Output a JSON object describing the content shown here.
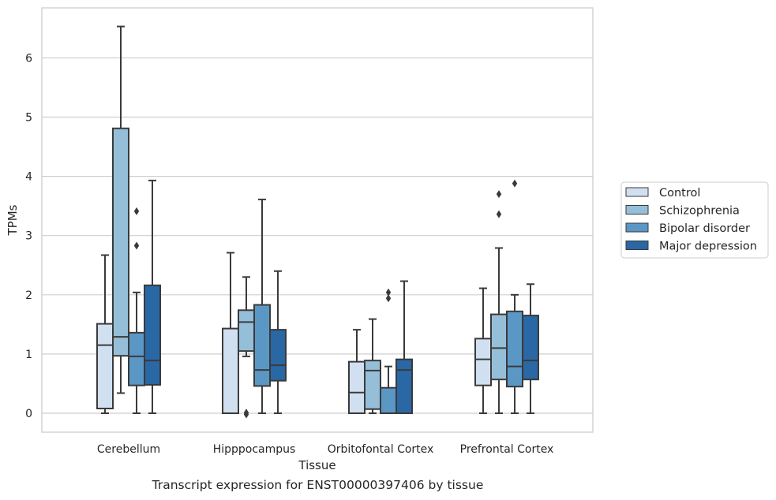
{
  "caption": "Transcript expression for ENST00000397406 by tissue",
  "chart_data": {
    "type": "box",
    "xlabel": "Tissue",
    "ylabel": "TPMs",
    "ylim": [
      -0.32,
      6.85
    ],
    "yticks": [
      0,
      1,
      2,
      3,
      4,
      5,
      6
    ],
    "grid": "horizontal",
    "legend_position": "right",
    "categories": [
      "Cerebellum",
      "Hipppocampus",
      "Orbitofontal Cortex",
      "Prefrontal Cortex"
    ],
    "series": [
      {
        "name": "Control",
        "color": "#d1e0f0",
        "boxes": [
          {
            "whislo": 0.0,
            "q1": 0.08,
            "med": 1.15,
            "q3": 1.51,
            "whishi": 2.67,
            "fliers": []
          },
          {
            "whislo": 0.0,
            "q1": 0.0,
            "med": 0.0,
            "q3": 1.43,
            "whishi": 2.71,
            "fliers": []
          },
          {
            "whislo": 0.0,
            "q1": 0.0,
            "med": 0.35,
            "q3": 0.87,
            "whishi": 1.41,
            "fliers": []
          },
          {
            "whislo": 0.0,
            "q1": 0.47,
            "med": 0.91,
            "q3": 1.26,
            "whishi": 2.11,
            "fliers": []
          }
        ]
      },
      {
        "name": "Schizophrenia",
        "color": "#95bfd9",
        "boxes": [
          {
            "whislo": 0.34,
            "q1": 0.97,
            "med": 1.29,
            "q3": 4.81,
            "whishi": 6.53,
            "fliers": []
          },
          {
            "whislo": 0.96,
            "q1": 1.05,
            "med": 1.54,
            "q3": 1.74,
            "whishi": 2.3,
            "fliers": [
              -0.02,
              0.01
            ]
          },
          {
            "whislo": 0.0,
            "q1": 0.07,
            "med": 0.72,
            "q3": 0.89,
            "whishi": 1.59,
            "fliers": []
          },
          {
            "whislo": 0.0,
            "q1": 0.57,
            "med": 1.1,
            "q3": 1.67,
            "whishi": 2.79,
            "fliers": [
              3.36,
              3.7
            ]
          }
        ]
      },
      {
        "name": "Bipolar disorder",
        "color": "#5b97c5",
        "boxes": [
          {
            "whislo": 0.0,
            "q1": 0.47,
            "med": 0.96,
            "q3": 1.36,
            "whishi": 2.04,
            "fliers": [
              2.83,
              3.41
            ]
          },
          {
            "whislo": 0.0,
            "q1": 0.46,
            "med": 0.73,
            "q3": 1.83,
            "whishi": 3.61,
            "fliers": []
          },
          {
            "whislo": 0.0,
            "q1": 0.0,
            "med": 0.0,
            "q3": 0.43,
            "whishi": 0.79,
            "fliers": [
              1.94,
              2.04
            ]
          },
          {
            "whislo": 0.0,
            "q1": 0.45,
            "med": 0.79,
            "q3": 1.72,
            "whishi": 2.0,
            "fliers": [
              3.88
            ]
          }
        ]
      },
      {
        "name": "Major depression",
        "color": "#2a67a5",
        "boxes": [
          {
            "whislo": 0.0,
            "q1": 0.48,
            "med": 0.89,
            "q3": 2.16,
            "whishi": 3.93,
            "fliers": []
          },
          {
            "whislo": 0.0,
            "q1": 0.55,
            "med": 0.81,
            "q3": 1.41,
            "whishi": 2.4,
            "fliers": []
          },
          {
            "whislo": 0.0,
            "q1": 0.0,
            "med": 0.73,
            "q3": 0.91,
            "whishi": 2.23,
            "fliers": []
          },
          {
            "whislo": 0.0,
            "q1": 0.57,
            "med": 0.89,
            "q3": 1.65,
            "whishi": 2.18,
            "fliers": []
          }
        ]
      }
    ]
  }
}
